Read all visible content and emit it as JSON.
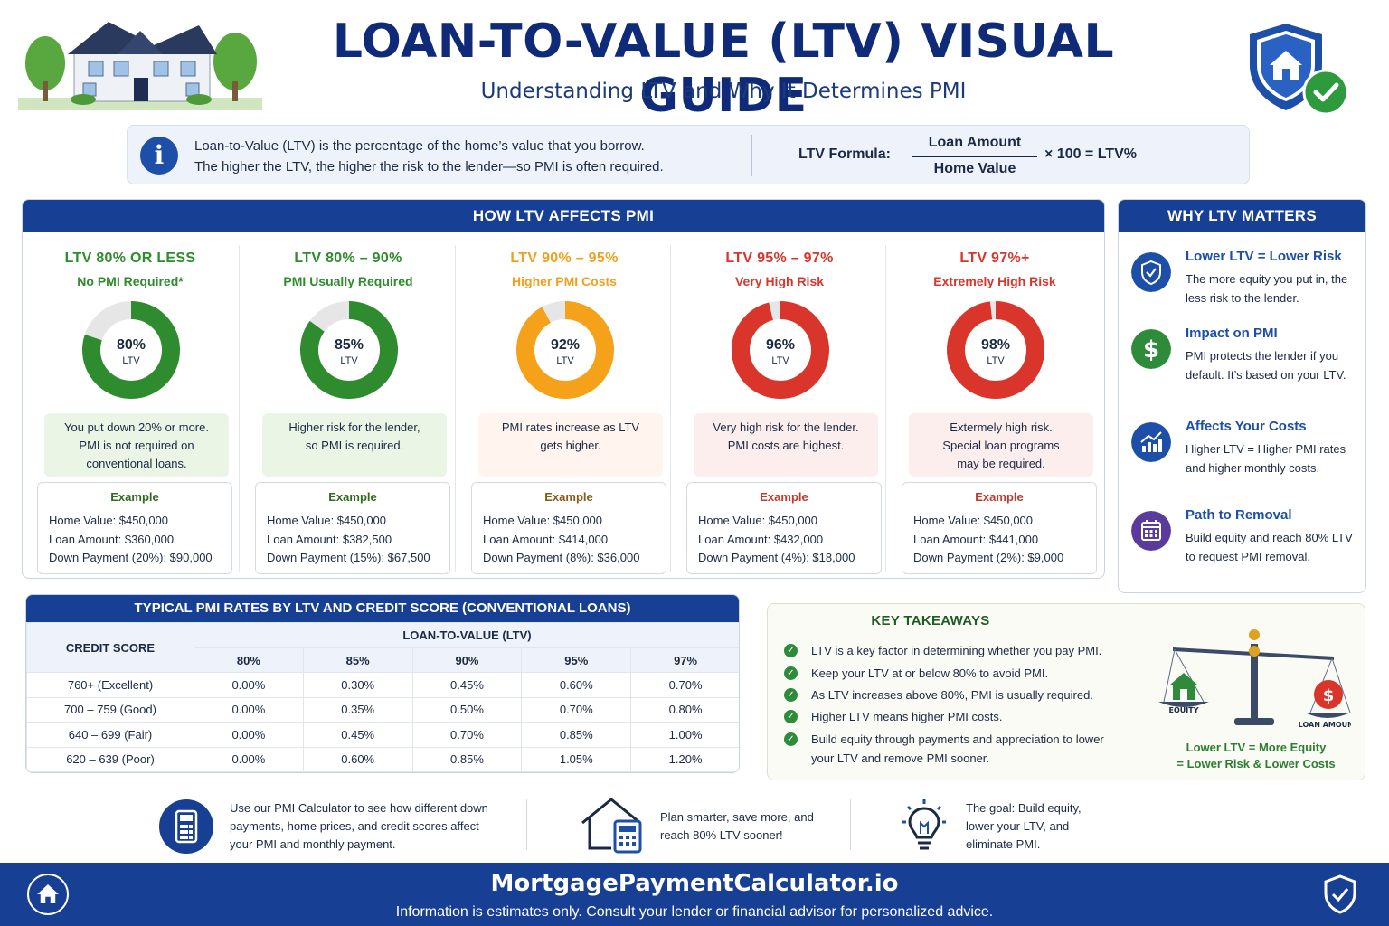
{
  "header": {
    "title": "LOAN-TO-VALUE (LTV) VISUAL GUIDE",
    "subtitle": "Understanding LTV and Why It Determines PMI"
  },
  "info": {
    "line1": "Loan-to-Value (LTV) is the percentage of the home’s value that you borrow.",
    "line2": "The higher the LTV, the higher the risk to the lender—so PMI is often required.",
    "formula_label": "LTV Formula:",
    "numerator": "Loan Amount",
    "denominator": "Home Value",
    "formula_tail": "× 100  =  LTV%"
  },
  "affects": {
    "heading": "HOW LTV AFFECTS PMI",
    "example_label": "Example",
    "ltv_label": "LTV",
    "columns": [
      {
        "title": "LTV 80% OR LESS",
        "subtitle": "No PMI Required*",
        "pct_text": "80%",
        "ltv": 0.8,
        "color": "#2e8b2e",
        "desc_bg": "#eaf5e6",
        "desc": [
          "You put down 20% or more.",
          "PMI is not required on",
          "conventional loans."
        ],
        "example": [
          "Home Value: $450,000",
          "Loan Amount: $360,000",
          "Down Payment (20%): $90,000"
        ]
      },
      {
        "title": "LTV 80% – 90%",
        "subtitle": "PMI Usually Required",
        "pct_text": "85%",
        "ltv": 0.85,
        "color": "#2e8b2e",
        "desc_bg": "#eaf5e6",
        "desc": [
          "Higher risk for the lender,",
          "so PMI is required."
        ],
        "example": [
          "Home Value: $450,000",
          "Loan Amount: $382,500",
          "Down Payment (15%): $67,500"
        ]
      },
      {
        "title": "LTV 90% – 95%",
        "subtitle": "Higher PMI Costs",
        "pct_text": "92%",
        "ltv": 0.92,
        "color": "#f5a21a",
        "title_color": "#f0a01e",
        "desc_bg": "#fff5ee",
        "desc": [
          "PMI rates increase as LTV",
          "gets higher."
        ],
        "example": [
          "Home Value: $450,000",
          "Loan Amount: $414,000",
          "Down Payment (8%): $36,000"
        ]
      },
      {
        "title": "LTV 95% – 97%",
        "subtitle": "Very High Risk",
        "pct_text": "96%",
        "ltv": 0.96,
        "color": "#d9352b",
        "desc_bg": "#fdeeee",
        "desc": [
          "Very high risk for the lender.",
          "PMI costs are highest."
        ],
        "example": [
          "Home Value: $450,000",
          "Loan Amount: $432,000",
          "Down Payment (4%): $18,000"
        ]
      },
      {
        "title": "LTV 97%+",
        "subtitle": "Extremely High Risk",
        "pct_text": "98%",
        "ltv": 0.98,
        "color": "#d9352b",
        "desc_bg": "#fdeeee",
        "desc": [
          "Extermely high risk.",
          "Special loan programs",
          "may be required."
        ],
        "example": [
          "Home Value: $450,000",
          "Loan Amount: $441,000",
          "Down Payment (2%): $9,000"
        ]
      }
    ]
  },
  "why": {
    "heading": "WHY LTV MATTERS",
    "items": [
      {
        "title": "Lower LTV = Lower Risk",
        "text": "The more equity you put in, the less risk to the lender.",
        "icon": "shield-check-icon",
        "color": "#1d4fa8"
      },
      {
        "title": "Impact on PMI",
        "text": "PMI protects the lender if you default. It’s based on your LTV.",
        "icon": "dollar-icon",
        "color": "#2e8b3a"
      },
      {
        "title": "Affects Your Costs",
        "text": "Higher LTV = Higher PMI rates and higher monthly costs.",
        "icon": "trend-chart-icon",
        "color": "#1d4fa8"
      },
      {
        "title": "Path to Removal",
        "text": "Build equity and reach 80% LTV to request PMI removal.",
        "icon": "calendar-icon",
        "color": "#5b3a9e"
      }
    ]
  },
  "rates": {
    "heading": "TYPICAL PMI RATES BY LTV AND CREDIT SCORE (CONVENTIONAL LOANS)",
    "credit_header": "CREDIT SCORE",
    "ltv_header": "LOAN-TO-VALUE (LTV)",
    "ltv_cols": [
      "80%",
      "85%",
      "90%",
      "95%",
      "97%"
    ],
    "rows": [
      {
        "score": "760+ (Excellent)",
        "values": [
          "0.00%",
          "0.30%",
          "0.45%",
          "0.60%",
          "0.70%"
        ]
      },
      {
        "score": "700 – 759 (Good)",
        "values": [
          "0.00%",
          "0.35%",
          "0.50%",
          "0.70%",
          "0.80%"
        ]
      },
      {
        "score": "640 – 699 (Fair)",
        "values": [
          "0.00%",
          "0.45%",
          "0.70%",
          "0.85%",
          "1.00%"
        ]
      },
      {
        "score": "620 – 639 (Poor)",
        "values": [
          "0.00%",
          "0.60%",
          "0.85%",
          "1.05%",
          "1.20%"
        ]
      }
    ]
  },
  "takeaways": {
    "heading": "KEY TAKEAWAYS",
    "items": [
      "LTV is a key factor in determining whether you pay PMI.",
      "Keep your LTV at or below 80% to avoid PMI.",
      "As LTV increases above 80%, PMI is usually required.",
      "Higher LTV means higher PMI costs.",
      "Build equity through payments and appreciation to lower your LTV and remove PMI sooner."
    ],
    "scale_left": "EQUITY",
    "scale_right": "LOAN AMOUNT",
    "caption1": "Lower LTV = More Equity",
    "caption2": "= Lower Risk & Lower Costs"
  },
  "tips": [
    {
      "text": "Use our PMI Calculator to see how different down payments, home prices, and credit scores affect your PMI and monthly payment.",
      "icon": "calculator-icon"
    },
    {
      "text": "Plan smarter, save more, and reach 80% LTV sooner!",
      "icon": "house-calculator-icon"
    },
    {
      "text": "The goal: Build equity, lower your LTV, and eliminate PMI.",
      "icon": "lightbulb-icon"
    }
  ],
  "footer": {
    "brand": "MortgagePaymentCalculator.io",
    "note": "Information is estimates only. Consult your lender or financial advisor for personalized advice."
  },
  "colors": {
    "navy": "#173f93",
    "green": "#2e8b2e",
    "orange": "#f5a21a",
    "red": "#d9352b"
  }
}
